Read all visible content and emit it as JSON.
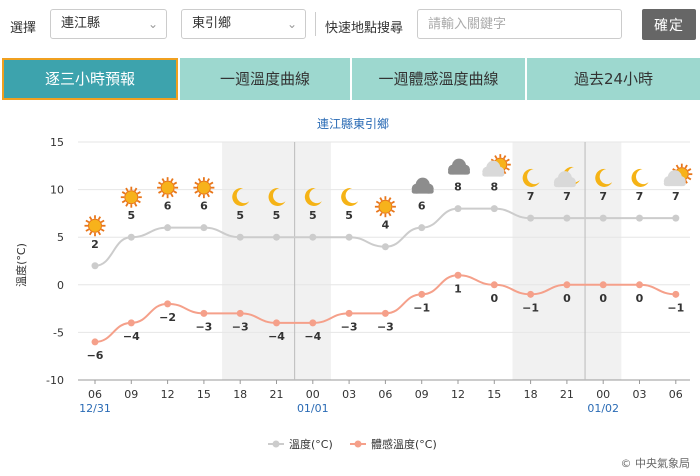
{
  "topbar": {
    "select_label": "選擇",
    "county": "連江縣",
    "town": "東引鄉",
    "quick_label": "快速地點搜尋",
    "search_placeholder": "請輸入關鍵字",
    "confirm": "確定"
  },
  "tabs": [
    {
      "label": "逐三小時預報",
      "active": true
    },
    {
      "label": "一週溫度曲線",
      "active": false
    },
    {
      "label": "一週體感溫度曲線",
      "active": false
    },
    {
      "label": "過去24小時",
      "active": false
    }
  ],
  "colors": {
    "temp_line": "#cccccc",
    "feel_line": "#f5a08a",
    "night_band": "#f1f1f1",
    "tab_active": "#3da3ad",
    "tab_inactive": "#9dd8cf",
    "date_label": "#2a6bb5",
    "day_divider": "#bbbbbb"
  },
  "chart_data": {
    "type": "line",
    "title": "連江縣東引鄉",
    "ylabel": "溫度(°C)",
    "ylim": [
      -10,
      15
    ],
    "yticks": [
      -10,
      -5,
      0,
      5,
      10,
      15
    ],
    "x": [
      "06",
      "09",
      "12",
      "15",
      "18",
      "21",
      "00",
      "03",
      "06",
      "09",
      "12",
      "15",
      "18",
      "21",
      "00",
      "03",
      "06"
    ],
    "dates": [
      {
        "index": 0,
        "label": "12/31"
      },
      {
        "index": 6,
        "label": "01/01"
      },
      {
        "index": 14,
        "label": "01/02"
      }
    ],
    "night_bands": [
      [
        4,
        7
      ],
      [
        12,
        15
      ]
    ],
    "day_dividers": [
      5.5,
      13.5
    ],
    "series": [
      {
        "name": "溫度(°C)",
        "values": [
          2,
          5,
          6,
          6,
          5,
          5,
          5,
          5,
          4,
          6,
          8,
          8,
          7,
          7,
          7,
          7,
          7
        ]
      },
      {
        "name": "體感溫度(°C)",
        "values": [
          -6,
          -4,
          -2,
          -3,
          -3,
          -4,
          -4,
          -3,
          -3,
          -1,
          1,
          0,
          -1,
          0,
          0,
          0,
          -1
        ]
      }
    ],
    "icons": [
      "sun-icon",
      "sun-icon",
      "sun-icon",
      "sun-icon",
      "moon-icon",
      "moon-icon",
      "moon-icon",
      "moon-icon",
      "sun-icon",
      "cloud-icon",
      "cloud-icon",
      "partly-cloudy-icon",
      "moon-icon",
      "moon-cloud-icon",
      "moon-icon",
      "moon-icon",
      "partly-cloudy-icon"
    ],
    "legend": [
      {
        "label": "溫度(°C)"
      },
      {
        "label": "體感溫度(°C)"
      }
    ],
    "legend_position": "bottom"
  },
  "footer": {
    "copyright": "© 中央氣象局"
  }
}
